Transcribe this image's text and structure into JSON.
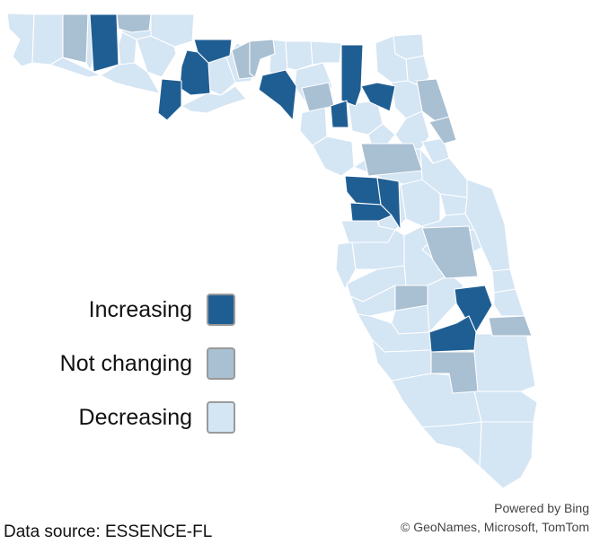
{
  "colors": {
    "increasing": "#1f5e93",
    "not_changing": "#a9bfd2",
    "decreasing": "#d4e5f4"
  },
  "legend": {
    "items": [
      {
        "key": "increasing",
        "label": "Increasing"
      },
      {
        "key": "not_changing",
        "label": "Not changing"
      },
      {
        "key": "decreasing",
        "label": "Decreasing"
      }
    ]
  },
  "attribution": {
    "line1": "Powered by Bing",
    "line2": "© GeoNames, Microsoft, TomTom"
  },
  "source": {
    "text": "Data source: ESSENCE-FL"
  }
}
